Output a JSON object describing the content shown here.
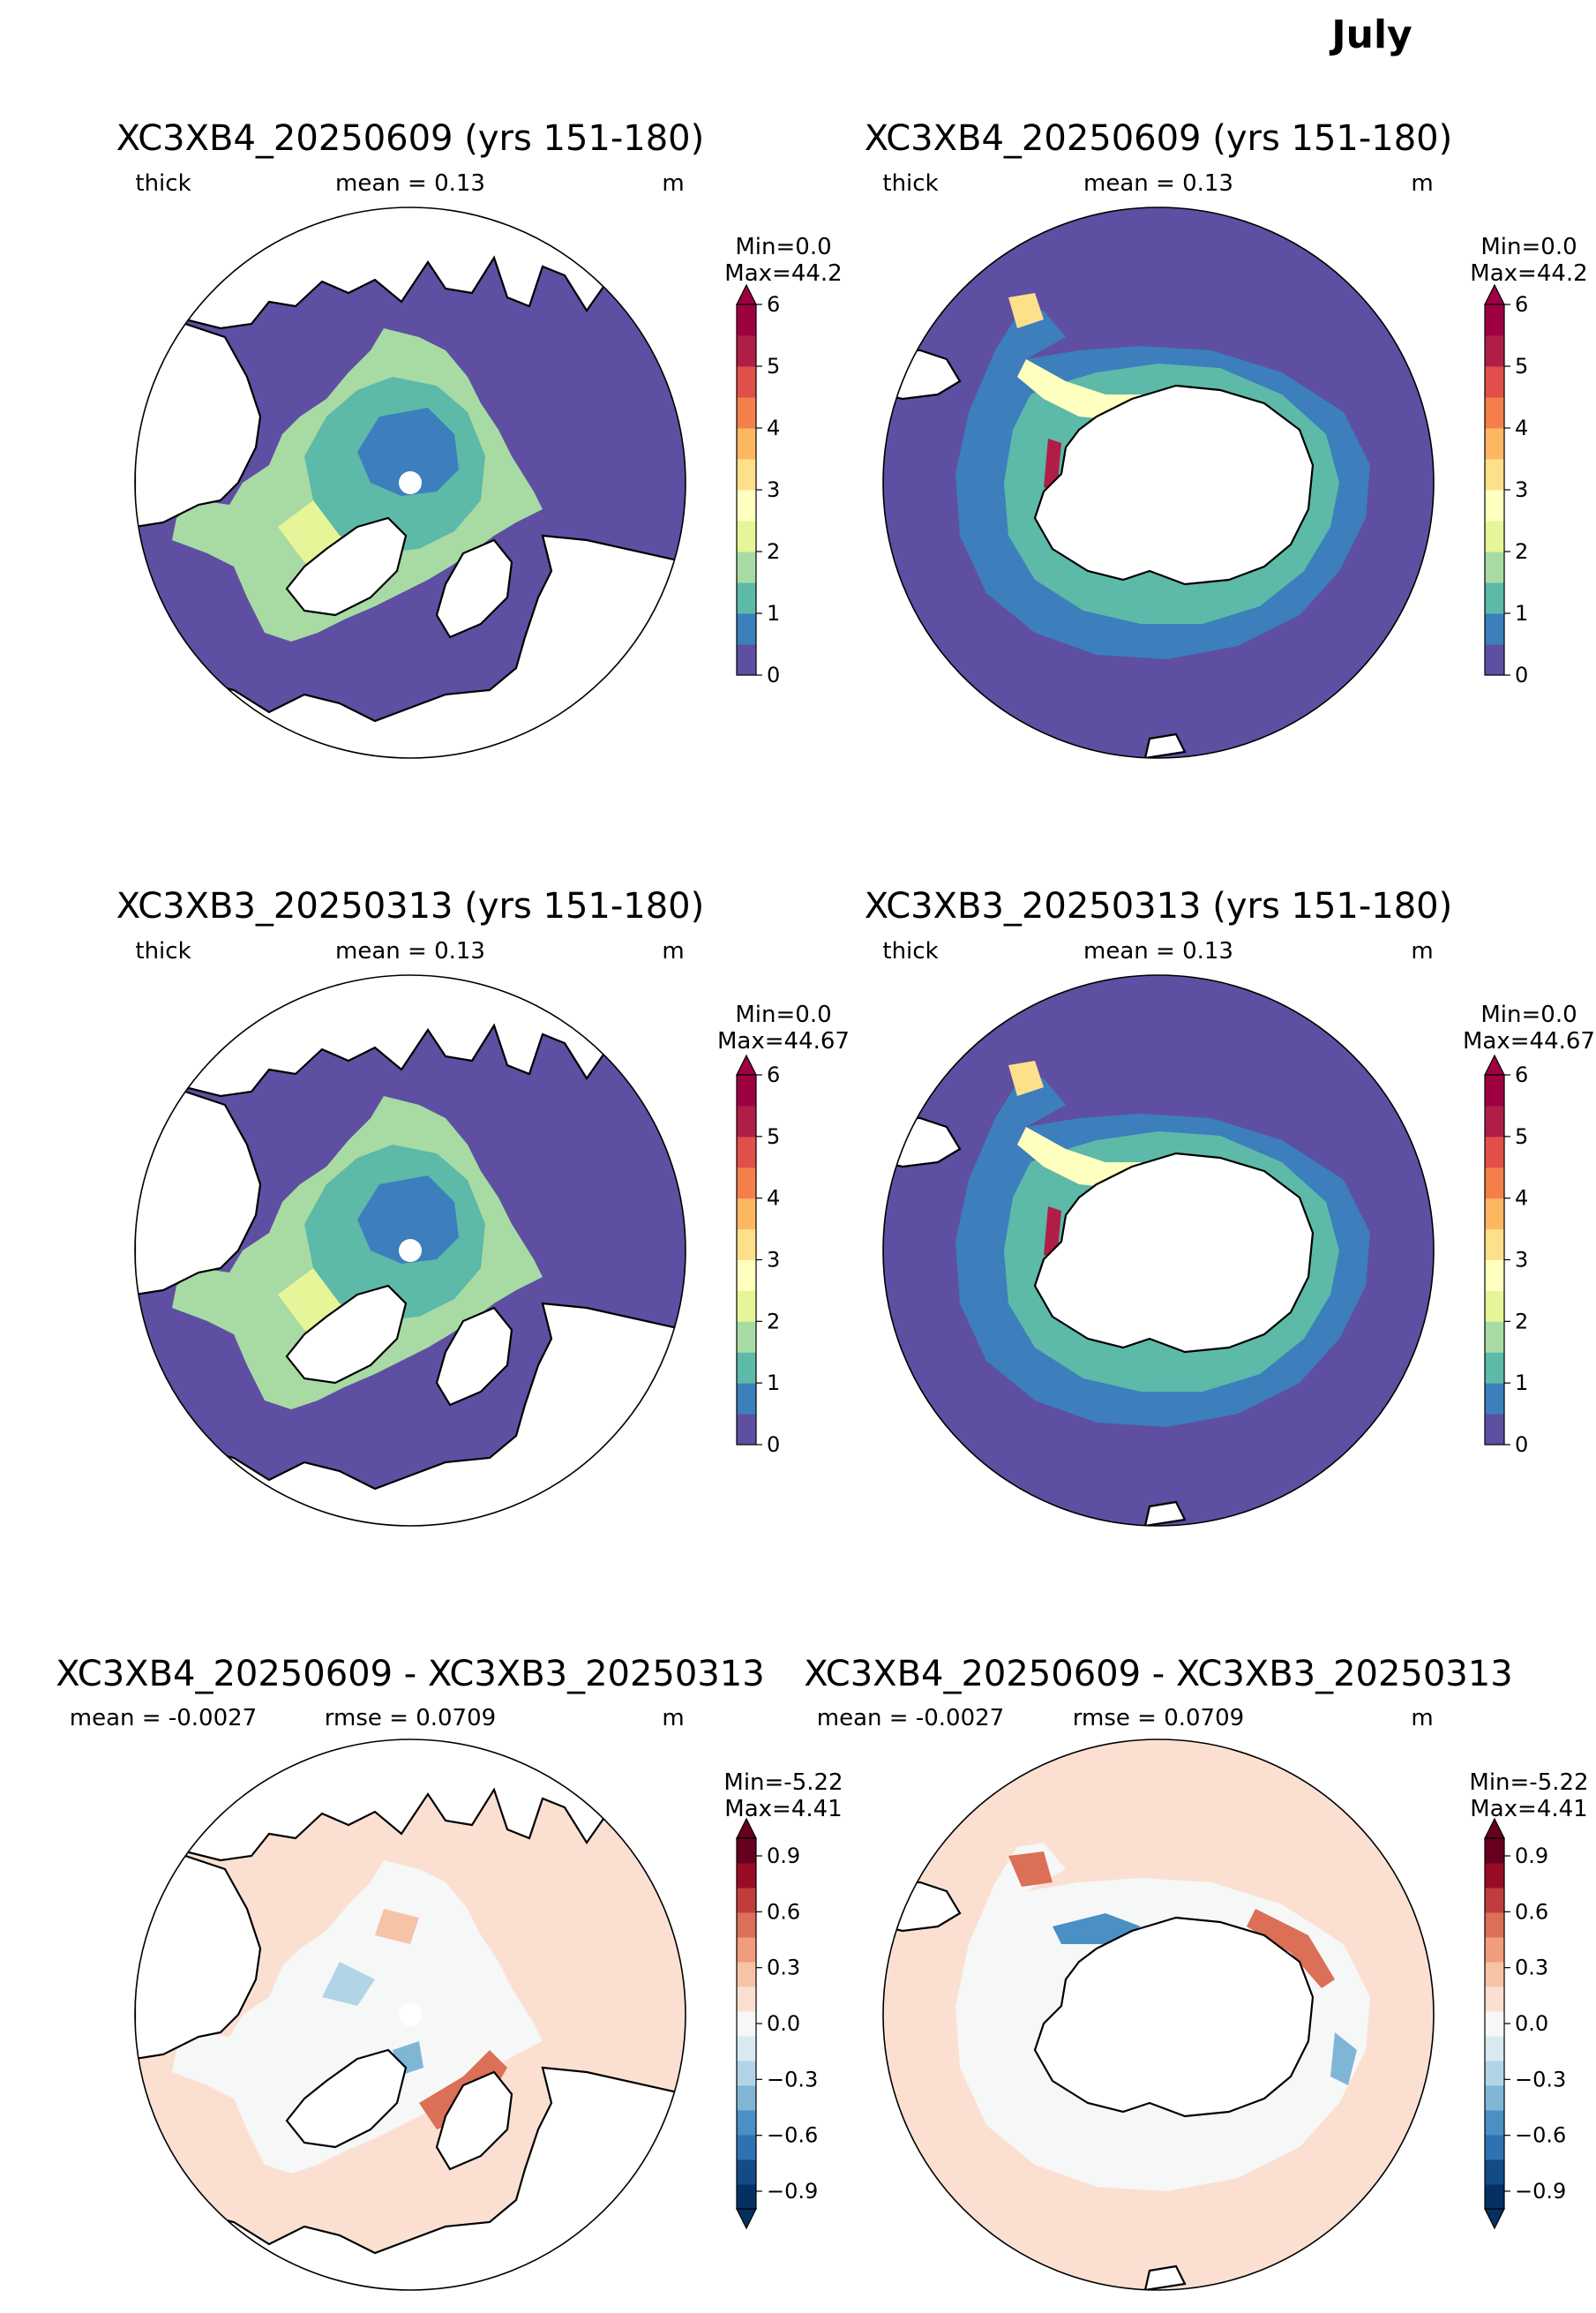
{
  "figure": {
    "title": "July"
  },
  "colors": {
    "ocean_zero": "#5e4fa2",
    "land": "#ffffff",
    "coast": "#000000",
    "diff_background": "#fbe0d2"
  },
  "colorbars": {
    "thick": {
      "ticks": [
        "0",
        "1",
        "2",
        "3",
        "4",
        "5",
        "6"
      ],
      "colors": [
        "#5e4fa2",
        "#3c7fbc",
        "#5db9a8",
        "#a8dba4",
        "#e6f598",
        "#ffffbf",
        "#fee08b",
        "#fdb761",
        "#f57f4b",
        "#e04f4a",
        "#b01e48",
        "#9e0142"
      ]
    },
    "diff": {
      "ticks": [
        "0.9",
        "0.6",
        "0.3",
        "0.0",
        "−0.3",
        "−0.6",
        "−0.9"
      ],
      "colors": [
        "#053061",
        "#134b87",
        "#2d72b3",
        "#4a90c4",
        "#7fb6d6",
        "#b1d5e7",
        "#d8e9f1",
        "#f6f7f7",
        "#fbe0d2",
        "#f7c3a6",
        "#ef9d7b",
        "#dc6f58",
        "#c13c3c",
        "#990c26",
        "#67001f"
      ]
    }
  },
  "panels": [
    {
      "id": "arctic-1",
      "hemi": "N",
      "kind": "thick",
      "title": "XC3XB4_20250609 (yrs 151-180)",
      "sub_left": "thick",
      "sub_center": "mean = 0.13",
      "sub_right": "m",
      "min_label": "Min=0.0",
      "max_label": "Max=44.2"
    },
    {
      "id": "antarctic-1",
      "hemi": "S",
      "kind": "thick",
      "title": "XC3XB4_20250609 (yrs 151-180)",
      "sub_left": "thick",
      "sub_center": "mean = 0.13",
      "sub_right": "m",
      "min_label": "Min=0.0",
      "max_label": "Max=44.2"
    },
    {
      "id": "arctic-2",
      "hemi": "N",
      "kind": "thick",
      "title": "XC3XB3_20250313 (yrs 151-180)",
      "sub_left": "thick",
      "sub_center": "mean = 0.13",
      "sub_right": "m",
      "min_label": "Min=0.0",
      "max_label": "Max=44.67"
    },
    {
      "id": "antarctic-2",
      "hemi": "S",
      "kind": "thick",
      "title": "XC3XB3_20250313 (yrs 151-180)",
      "sub_left": "thick",
      "sub_center": "mean = 0.13",
      "sub_right": "m",
      "min_label": "Min=0.0",
      "max_label": "Max=44.67"
    },
    {
      "id": "arctic-diff",
      "hemi": "N",
      "kind": "diff",
      "title": "XC3XB4_20250609 - XC3XB3_20250313",
      "sub_left": "mean = -0.0027",
      "sub_center": "rmse = 0.0709",
      "sub_right": "m",
      "min_label": "Min=-5.22",
      "max_label": "Max=4.41"
    },
    {
      "id": "antarctic-diff",
      "hemi": "S",
      "kind": "diff",
      "title": "XC3XB4_20250609 - XC3XB3_20250313",
      "sub_left": "mean = -0.0027",
      "sub_center": "rmse = 0.0709",
      "sub_right": "m",
      "min_label": "Min=-5.22",
      "max_label": "Max=4.41"
    }
  ]
}
